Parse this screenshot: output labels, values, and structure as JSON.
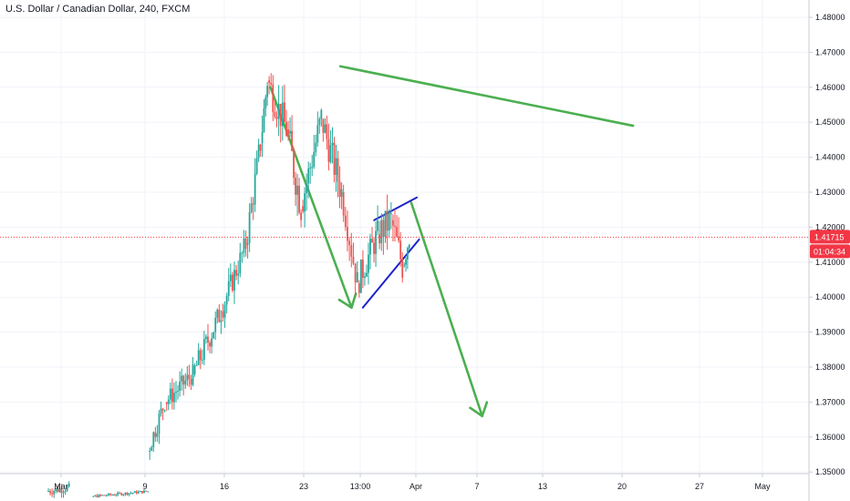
{
  "header": {
    "title": "U.S. Dollar / Canadian Dollar, 240, FXCM"
  },
  "price_axis": {
    "ticks": [
      "1.48000",
      "1.47000",
      "1.46000",
      "1.45000",
      "1.44000",
      "1.43000",
      "1.42000",
      "1.41000",
      "1.40000",
      "1.39000",
      "1.38000",
      "1.37000",
      "1.36000",
      "1.35000"
    ],
    "last_price": "1.41715",
    "countdown": "01:04:34",
    "badge_color": "#f23645"
  },
  "time_axis": {
    "ticks": [
      "Mar",
      "9",
      "16",
      "23",
      "13:00",
      "Apr",
      "7",
      "13",
      "20",
      "27",
      "May"
    ]
  },
  "colors": {
    "up": "#26a69a",
    "down": "#ef5350",
    "annotation_green": "#4caf50",
    "annotation_blue": "#1e22c8",
    "price_line": "#f23645",
    "grid": "#f0f3fa"
  },
  "chart_data": {
    "type": "candlestick",
    "symbol": "USDCAD",
    "timeframe": "240",
    "ylim": [
      1.342,
      1.486
    ],
    "grid": true,
    "segments": [
      {
        "from_day": 0,
        "to_day": 2,
        "from": 1.3445,
        "to": 1.3455,
        "vol": 0.0018
      },
      {
        "from_day": 4,
        "to_day": 9,
        "from": 1.343,
        "to": 1.3445,
        "vol": 0.0006
      },
      {
        "from_day": 9.0,
        "to_day": 10.5,
        "from": 1.356,
        "to": 1.37,
        "vol": 0.004
      },
      {
        "from_day": 10.5,
        "to_day": 13.0,
        "from": 1.37,
        "to": 1.378,
        "vol": 0.004
      },
      {
        "from_day": 13.0,
        "to_day": 15.5,
        "from": 1.378,
        "to": 1.396,
        "vol": 0.005
      },
      {
        "from_day": 15.5,
        "to_day": 17.7,
        "from": 1.396,
        "to": 1.415,
        "vol": 0.005
      },
      {
        "from_day": 17.7,
        "to_day": 19.0,
        "from": 1.415,
        "to": 1.444,
        "vol": 0.006
      },
      {
        "from_day": 19.0,
        "to_day": 19.6,
        "from": 1.444,
        "to": 1.462,
        "vol": 0.006
      },
      {
        "from_day": 19.6,
        "to_day": 21.3,
        "from": 1.462,
        "to": 1.448,
        "vol": 0.007
      },
      {
        "from_day": 21.3,
        "to_day": 22.6,
        "from": 1.448,
        "to": 1.426,
        "vol": 0.008
      },
      {
        "from_day": 22.6,
        "to_day": 24.4,
        "from": 1.426,
        "to": 1.451,
        "vol": 0.007
      },
      {
        "from_day": 24.4,
        "to_day": 26.2,
        "from": 1.451,
        "to": 1.43,
        "vol": 0.007
      },
      {
        "from_day": 26.2,
        "to_day": 27.6,
        "from": 1.43,
        "to": 1.404,
        "vol": 0.006
      },
      {
        "from_day": 27.6,
        "to_day": 29.4,
        "from": 1.404,
        "to": 1.418,
        "vol": 0.006
      },
      {
        "from_day": 29.4,
        "to_day": 30.6,
        "from": 1.418,
        "to": 1.422,
        "vol": 0.007
      },
      {
        "from_day": 30.6,
        "to_day": 31.6,
        "from": 1.422,
        "to": 1.409,
        "vol": 0.007
      },
      {
        "from_day": 31.6,
        "to_day": 32.2,
        "from": 1.409,
        "to": 1.4172,
        "vol": 0.005
      }
    ],
    "annotations": [
      {
        "name": "downtrend-arrow-1",
        "color": "green",
        "points": [
          [
            19.8,
            1.46
          ],
          [
            27.0,
            1.397
          ]
        ],
        "arrowhead": true
      },
      {
        "name": "resistance-line",
        "color": "green",
        "points": [
          [
            26.0,
            1.466
          ],
          [
            52.0,
            1.449
          ]
        ],
        "arrowhead": false
      },
      {
        "name": "channel-upper",
        "color": "blue",
        "points": [
          [
            29.0,
            1.422
          ],
          [
            32.8,
            1.4285
          ]
        ],
        "arrowhead": false
      },
      {
        "name": "channel-lower",
        "color": "blue",
        "points": [
          [
            28.0,
            1.397
          ],
          [
            33.0,
            1.4165
          ]
        ],
        "arrowhead": false
      },
      {
        "name": "downtrend-arrow-2",
        "color": "green",
        "points": [
          [
            32.3,
            1.427
          ],
          [
            38.6,
            1.366
          ]
        ],
        "arrowhead": true
      }
    ]
  }
}
